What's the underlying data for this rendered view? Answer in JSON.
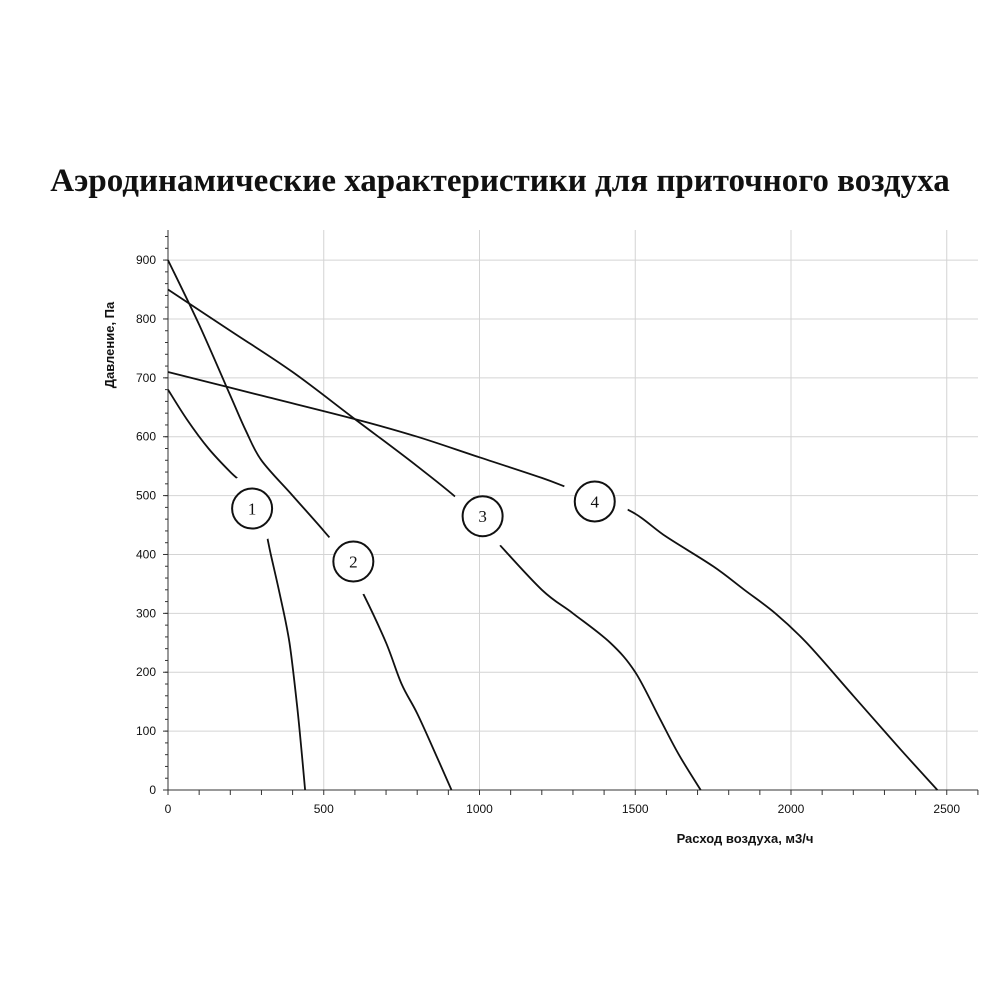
{
  "chart_data": {
    "type": "line",
    "title": "Аэродинамические характеристики для приточного воздуха",
    "xlabel": "Расход воздуха, м3/ч",
    "ylabel": "Давление, Па",
    "xlim": [
      0,
      2600
    ],
    "ylim": [
      0,
      950
    ],
    "xticks": [
      0,
      500,
      1000,
      1500,
      2000,
      2500
    ],
    "yticks": [
      0,
      100,
      200,
      300,
      400,
      500,
      600,
      700,
      800,
      900
    ],
    "grid": true,
    "legend": "none",
    "series": [
      {
        "name": "1",
        "x": [
          0,
          60,
          130,
          200,
          260,
          300,
          330,
          360,
          390,
          415,
          430,
          440
        ],
        "y": [
          680,
          630,
          580,
          540,
          510,
          470,
          400,
          330,
          250,
          140,
          60,
          0
        ]
      },
      {
        "name": "2",
        "x": [
          0,
          100,
          200,
          250,
          300,
          400,
          500,
          560,
          630,
          700,
          750,
          800,
          860,
          910
        ],
        "y": [
          900,
          790,
          670,
          610,
          560,
          500,
          440,
          400,
          330,
          250,
          180,
          130,
          60,
          0
        ]
      },
      {
        "name": "3",
        "x": [
          0,
          200,
          400,
          600,
          800,
          950,
          1050,
          1200,
          1300,
          1420,
          1500,
          1580,
          1640,
          1710
        ],
        "y": [
          850,
          780,
          710,
          630,
          550,
          485,
          425,
          340,
          300,
          250,
          200,
          120,
          60,
          0
        ]
      },
      {
        "name": "4",
        "x": [
          0,
          300,
          600,
          800,
          1000,
          1200,
          1300,
          1480,
          1600,
          1750,
          1850,
          1950,
          2050,
          2200,
          2350,
          2470
        ],
        "y": [
          710,
          670,
          630,
          600,
          565,
          530,
          510,
          475,
          430,
          380,
          340,
          300,
          250,
          160,
          70,
          0
        ]
      }
    ],
    "curve_labels": [
      {
        "text": "1",
        "x": 270,
        "y": 478
      },
      {
        "text": "2",
        "x": 595,
        "y": 388
      },
      {
        "text": "3",
        "x": 1010,
        "y": 465
      },
      {
        "text": "4",
        "x": 1370,
        "y": 490
      }
    ]
  }
}
